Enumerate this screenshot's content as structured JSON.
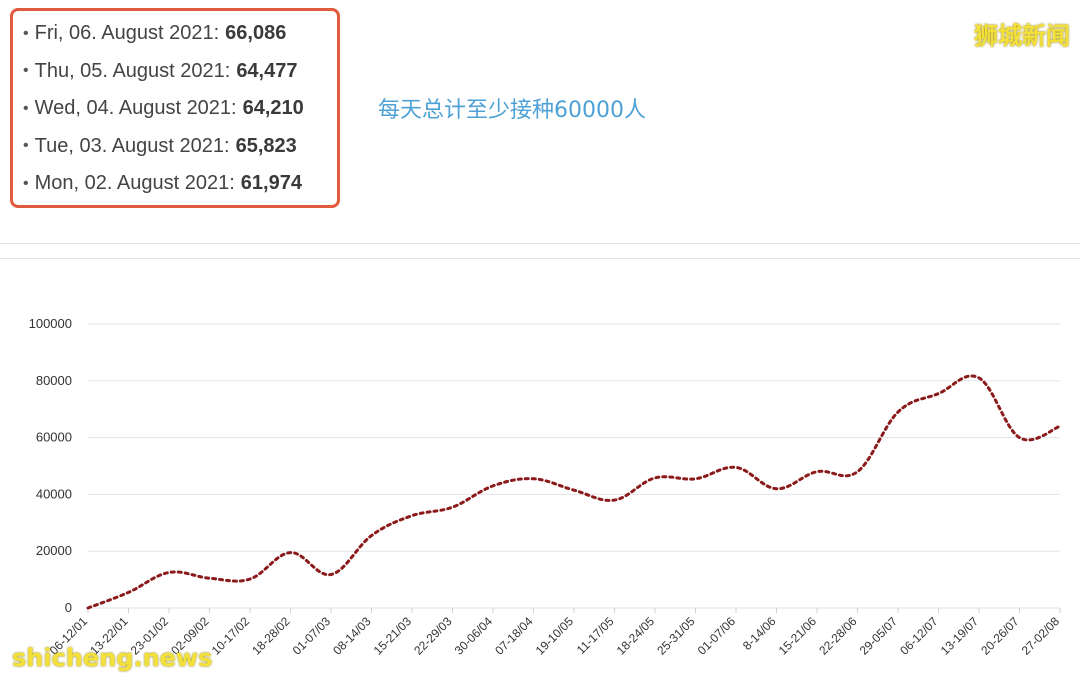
{
  "summary": {
    "rows": [
      {
        "label": "Fri, 06. August 2021:",
        "value": "66,086"
      },
      {
        "label": "Thu, 05. August 2021:",
        "value": "64,477"
      },
      {
        "label": "Wed, 04. August 2021:",
        "value": "64,210"
      },
      {
        "label": "Tue, 03. August 2021:",
        "value": "65,823"
      },
      {
        "label": "Mon, 02. August 2021:",
        "value": "61,974"
      }
    ]
  },
  "note": "每天总计至少接种60000人",
  "watermarks": {
    "top": "狮城新闻",
    "bottom": "shicheng.news"
  },
  "colors": {
    "box_border": "#e05a3c",
    "note": "#4ea1d6",
    "series": "#8b1a1a",
    "watermark": "#f3e03a"
  },
  "chart_data": {
    "type": "line",
    "ylim": [
      0,
      100000
    ],
    "y_ticks": [
      0,
      20000,
      40000,
      60000,
      80000,
      100000
    ],
    "grid": true,
    "categories": [
      "06-12/01",
      "13-22/01",
      "23-01/02",
      "02-09/02",
      "10-17/02",
      "18-28/02",
      "01-07/03",
      "08-14/03",
      "15-21/03",
      "22-29/03",
      "30-06/04",
      "07-18/04",
      "19-10/05",
      "11-17/05",
      "18-24/05",
      "25-31/05",
      "01-07/06",
      "8-14/06",
      "15-21/06",
      "22-28/06",
      "29-05/07",
      "06-12/07",
      "13-19/07",
      "20-26/07",
      "27-02/08"
    ],
    "series": [
      {
        "values": [
          0,
          5500,
          12500,
          10500,
          10200,
          19500,
          11800,
          25500,
          32500,
          35500,
          43000,
          45500,
          41500,
          38000,
          45800,
          45500,
          49500,
          42000,
          48000,
          48000,
          69000,
          75500,
          81000,
          60000,
          64000
        ]
      }
    ]
  }
}
